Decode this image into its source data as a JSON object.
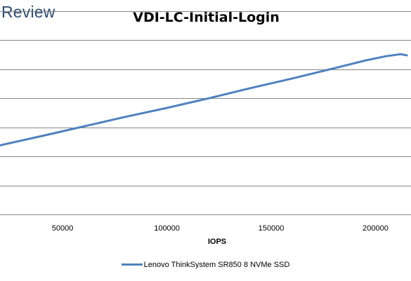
{
  "brand": {
    "text": "Review",
    "color": "#2d4a6a"
  },
  "chart_data": {
    "type": "line",
    "title": "VDI-LC-Initial-Login",
    "xlabel": "IOPS",
    "ylabel": "",
    "xlim": [
      20000,
      217000
    ],
    "ylim": [
      0,
      7
    ],
    "x_ticks": [
      50000,
      100000,
      150000,
      200000
    ],
    "x_tick_labels": [
      "50000",
      "100000",
      "150000",
      "200000"
    ],
    "y_gridlines": [
      1,
      2,
      3,
      4,
      5,
      6,
      7
    ],
    "grid": "horizontal",
    "legend_position": "bottom",
    "series": [
      {
        "name": "Lenovo ThinkSystem SR850 8 NVMe SSD",
        "color": "#4f81bd",
        "x": [
          20000,
          40000,
          60000,
          80000,
          100000,
          120000,
          140000,
          160000,
          180000,
          195000,
          205000,
          212000,
          215000
        ],
        "y": [
          2.38,
          2.7,
          3.03,
          3.36,
          3.67,
          4.0,
          4.35,
          4.68,
          5.03,
          5.3,
          5.45,
          5.52,
          5.48
        ]
      }
    ]
  }
}
